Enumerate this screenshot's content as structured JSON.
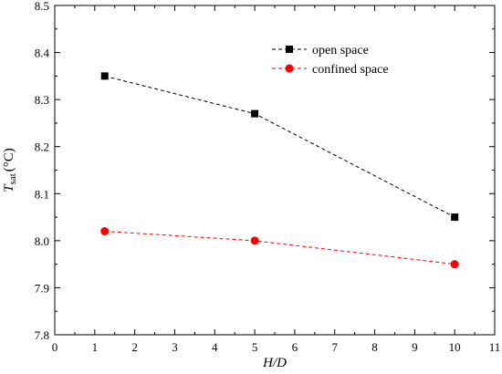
{
  "chart_data": {
    "type": "line",
    "xlabel": "H/D",
    "ylabel": {
      "symbol": "T",
      "subscript": "sat",
      "unit": "(°C)"
    },
    "xlim": [
      0,
      11
    ],
    "ylim": [
      7.8,
      8.5
    ],
    "xticks": [
      "0",
      "1",
      "2",
      "3",
      "4",
      "5",
      "6",
      "7",
      "8",
      "9",
      "10",
      "11"
    ],
    "yticks": [
      "7.8",
      "7.9",
      "8.0",
      "8.1",
      "8.2",
      "8.3",
      "8.4",
      "8.5"
    ],
    "grid": false,
    "legend_position": "top-right",
    "series": [
      {
        "name": "open space",
        "color": "#000000",
        "marker": "square",
        "line_style": "dashed",
        "x": [
          1.25,
          5,
          10
        ],
        "y": [
          8.35,
          8.27,
          8.05
        ]
      },
      {
        "name": "confined space",
        "color": "#ff0000",
        "marker": "circle",
        "line_style": "dashed",
        "x": [
          1.25,
          5,
          10
        ],
        "y": [
          8.02,
          8.0,
          7.95
        ]
      }
    ]
  }
}
